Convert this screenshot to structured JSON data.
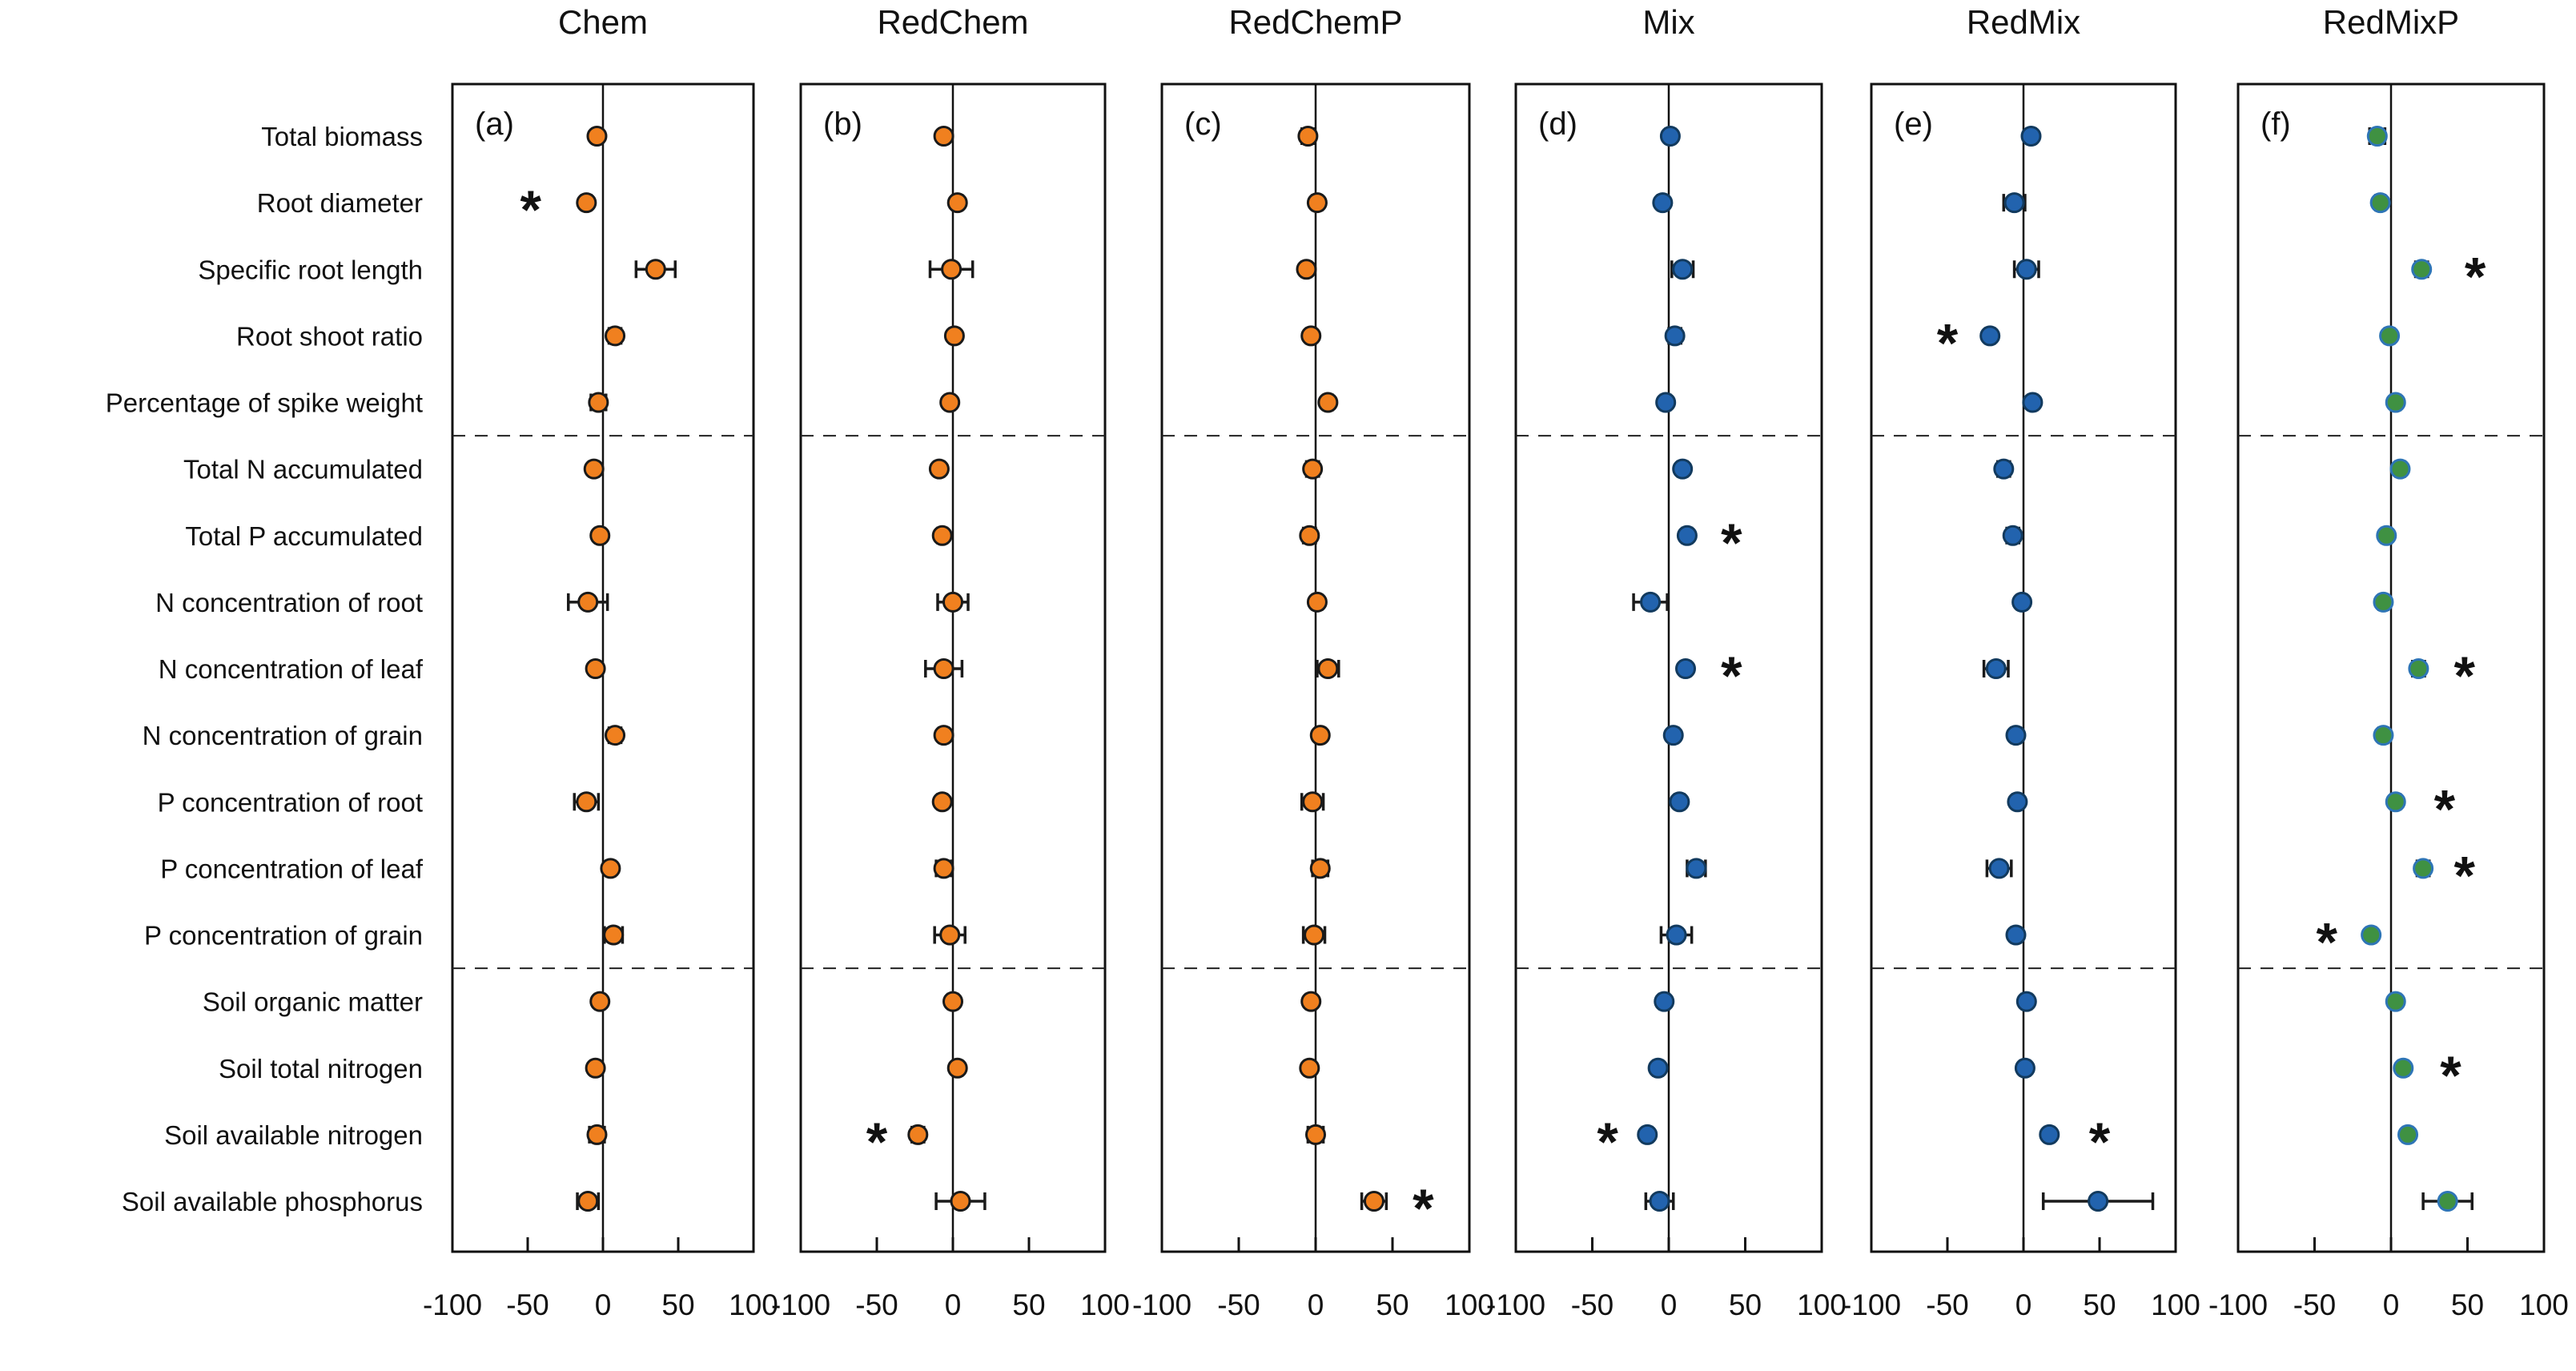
{
  "chart_data": {
    "type": "scatter",
    "subtype": "dot-with-error-bars-multipanel",
    "title": "",
    "xlabel": "",
    "ylabel": "",
    "x_range": [
      -100,
      100
    ],
    "x_ticks": [
      -100,
      -50,
      0,
      50,
      100
    ],
    "grid": false,
    "legend_position": "none",
    "zero_reference_line": true,
    "divider_after_rows": [
      5,
      13
    ],
    "categories": [
      "Total biomass",
      "Root diameter",
      "Specific root length",
      "Root shoot ratio",
      "Percentage of spike weight",
      "Total N accumulated",
      "Total P accumulated",
      "N concentration of root",
      "N concentration of leaf",
      "N concentration of grain",
      "P concentration of root",
      "P concentration of leaf",
      "P concentration of grain",
      "Soil organic matter",
      "Soil total nitrogen",
      "Soil available nitrogen",
      "Soil available phosphorus"
    ],
    "significance_symbol": "*",
    "colors": {
      "orange_fill": "#f0801f",
      "orange_edge": "#1a1a1a",
      "blue_fill": "#2263ae",
      "blue_edge": "#123a5e",
      "green_fill": "#3f9142",
      "green_edge": "#2e75b6",
      "axis": "#111111",
      "error_bar": "#1a1a1a"
    },
    "panels": [
      {
        "label": "(a)",
        "title": "Chem",
        "marker_fill": "#f0801f",
        "marker_edge": "#1a1a1a",
        "points": [
          {
            "value": -4,
            "err": 3,
            "star": null
          },
          {
            "value": -11,
            "err": 3,
            "star": -48
          },
          {
            "value": 35,
            "err": 13,
            "star": null
          },
          {
            "value": 8,
            "err": 4,
            "star": null
          },
          {
            "value": -3,
            "err": 5,
            "star": null
          },
          {
            "value": -6,
            "err": 3,
            "star": null
          },
          {
            "value": -2,
            "err": 3,
            "star": null
          },
          {
            "value": -10,
            "err": 13,
            "star": null
          },
          {
            "value": -5,
            "err": 3,
            "star": null
          },
          {
            "value": 8,
            "err": 4,
            "star": null
          },
          {
            "value": -11,
            "err": 8,
            "star": null
          },
          {
            "value": 5,
            "err": 3,
            "star": null
          },
          {
            "value": 7,
            "err": 6,
            "star": null
          },
          {
            "value": -2,
            "err": 3,
            "star": null
          },
          {
            "value": -5,
            "err": 3,
            "star": null
          },
          {
            "value": -4,
            "err": 5,
            "star": null
          },
          {
            "value": -10,
            "err": 7,
            "star": null
          }
        ]
      },
      {
        "label": "(b)",
        "title": "RedChem",
        "marker_fill": "#f0801f",
        "marker_edge": "#1a1a1a",
        "points": [
          {
            "value": -6,
            "err": 3,
            "star": null
          },
          {
            "value": 3,
            "err": 3,
            "star": null
          },
          {
            "value": -1,
            "err": 14,
            "star": null
          },
          {
            "value": 1,
            "err": 3,
            "star": null
          },
          {
            "value": -2,
            "err": 3,
            "star": null
          },
          {
            "value": -9,
            "err": 3,
            "star": null
          },
          {
            "value": -7,
            "err": 3,
            "star": null
          },
          {
            "value": 0,
            "err": 10,
            "star": null
          },
          {
            "value": -6,
            "err": 12,
            "star": null
          },
          {
            "value": -6,
            "err": 3,
            "star": null
          },
          {
            "value": -7,
            "err": 3,
            "star": null
          },
          {
            "value": -6,
            "err": 5,
            "star": null
          },
          {
            "value": -2,
            "err": 10,
            "star": null
          },
          {
            "value": 0,
            "err": 3,
            "star": null
          },
          {
            "value": 3,
            "err": 3,
            "star": null
          },
          {
            "value": -23,
            "err": 4,
            "star": -50
          },
          {
            "value": 5,
            "err": 16,
            "star": null
          }
        ]
      },
      {
        "label": "(c)",
        "title": "RedChemP",
        "marker_fill": "#f0801f",
        "marker_edge": "#1a1a1a",
        "points": [
          {
            "value": -5,
            "err": 4,
            "star": null
          },
          {
            "value": 1,
            "err": 3,
            "star": null
          },
          {
            "value": -6,
            "err": 3,
            "star": null
          },
          {
            "value": -3,
            "err": 3,
            "star": null
          },
          {
            "value": 8,
            "err": 3,
            "star": null
          },
          {
            "value": -2,
            "err": 4,
            "star": null
          },
          {
            "value": -4,
            "err": 4,
            "star": null
          },
          {
            "value": 1,
            "err": 3,
            "star": null
          },
          {
            "value": 8,
            "err": 7,
            "star": null
          },
          {
            "value": 3,
            "err": 3,
            "star": null
          },
          {
            "value": -2,
            "err": 7,
            "star": null
          },
          {
            "value": 3,
            "err": 5,
            "star": null
          },
          {
            "value": -1,
            "err": 7,
            "star": null
          },
          {
            "value": -3,
            "err": 3,
            "star": null
          },
          {
            "value": -4,
            "err": 3,
            "star": null
          },
          {
            "value": 0,
            "err": 5,
            "star": null
          },
          {
            "value": 38,
            "err": 8,
            "star": 70
          }
        ]
      },
      {
        "label": "(d)",
        "title": "Mix",
        "marker_fill": "#2263ae",
        "marker_edge": "#123a5e",
        "points": [
          {
            "value": 1,
            "err": 3,
            "star": null
          },
          {
            "value": -4,
            "err": 3,
            "star": null
          },
          {
            "value": 9,
            "err": 7,
            "star": null
          },
          {
            "value": 4,
            "err": 4,
            "star": null
          },
          {
            "value": -2,
            "err": 3,
            "star": null
          },
          {
            "value": 9,
            "err": 3,
            "star": null
          },
          {
            "value": 12,
            "err": 3,
            "star": 41
          },
          {
            "value": -12,
            "err": 11,
            "star": null
          },
          {
            "value": 11,
            "err": 3,
            "star": 41
          },
          {
            "value": 3,
            "err": 3,
            "star": null
          },
          {
            "value": 7,
            "err": 3,
            "star": null
          },
          {
            "value": 18,
            "err": 6,
            "star": null
          },
          {
            "value": 5,
            "err": 10,
            "star": null
          },
          {
            "value": -3,
            "err": 3,
            "star": null
          },
          {
            "value": -7,
            "err": 3,
            "star": null
          },
          {
            "value": -14,
            "err": 3,
            "star": -40
          },
          {
            "value": -6,
            "err": 9,
            "star": null
          }
        ]
      },
      {
        "label": "(e)",
        "title": "RedMix",
        "marker_fill": "#2263ae",
        "marker_edge": "#123a5e",
        "points": [
          {
            "value": 5,
            "err": 3,
            "star": null
          },
          {
            "value": -6,
            "err": 7,
            "star": null
          },
          {
            "value": 2,
            "err": 8,
            "star": null
          },
          {
            "value": -22,
            "err": 3,
            "star": -50
          },
          {
            "value": 6,
            "err": 3,
            "star": null
          },
          {
            "value": -13,
            "err": 4,
            "star": null
          },
          {
            "value": -7,
            "err": 4,
            "star": null
          },
          {
            "value": -1,
            "err": 3,
            "star": null
          },
          {
            "value": -18,
            "err": 8,
            "star": null
          },
          {
            "value": -5,
            "err": 3,
            "star": null
          },
          {
            "value": -4,
            "err": 3,
            "star": null
          },
          {
            "value": -16,
            "err": 8,
            "star": null
          },
          {
            "value": -5,
            "err": 3,
            "star": null
          },
          {
            "value": 2,
            "err": 3,
            "star": null
          },
          {
            "value": 1,
            "err": 3,
            "star": null
          },
          {
            "value": 17,
            "err": 3,
            "star": 50
          },
          {
            "value": 49,
            "err": 36,
            "star": null
          }
        ]
      },
      {
        "label": "(f)",
        "title": "RedMixP",
        "marker_fill": "#3f9142",
        "marker_edge": "#2e75b6",
        "points": [
          {
            "value": -9,
            "err": 5,
            "star": null
          },
          {
            "value": -7,
            "err": 3,
            "star": null
          },
          {
            "value": 20,
            "err": 4,
            "star": 55
          },
          {
            "value": -1,
            "err": 3,
            "star": null
          },
          {
            "value": 3,
            "err": 3,
            "star": null
          },
          {
            "value": 6,
            "err": 3,
            "star": null
          },
          {
            "value": -3,
            "err": 3,
            "star": null
          },
          {
            "value": -5,
            "err": 3,
            "star": null
          },
          {
            "value": 18,
            "err": 4,
            "star": 48
          },
          {
            "value": -5,
            "err": 3,
            "star": null
          },
          {
            "value": 3,
            "err": 3,
            "star": 35
          },
          {
            "value": 21,
            "err": 4,
            "star": 48
          },
          {
            "value": -13,
            "err": 3,
            "star": -42
          },
          {
            "value": 3,
            "err": 3,
            "star": null
          },
          {
            "value": 8,
            "err": 3,
            "star": 39
          },
          {
            "value": 11,
            "err": 3,
            "star": null
          },
          {
            "value": 37,
            "err": 16,
            "star": null
          }
        ]
      }
    ]
  }
}
